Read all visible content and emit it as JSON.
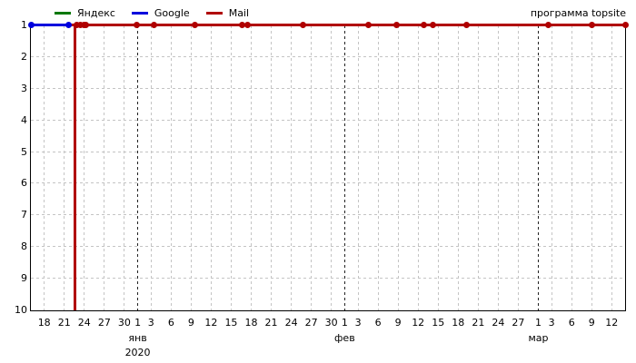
{
  "watermark": "программа topsite",
  "legend": [
    {
      "label": "Яндекс",
      "color": "#007800"
    },
    {
      "label": "Google",
      "color": "#0000dd"
    },
    {
      "label": "Mail",
      "color": "#b00000"
    }
  ],
  "chart_data": {
    "type": "line",
    "title": "",
    "watermark": "программа topsite",
    "grid": true,
    "y_axis": {
      "min": 1,
      "max": 10,
      "inverted": true,
      "tick_labels": [
        "1",
        "2",
        "3",
        "4",
        "5",
        "6",
        "7",
        "8",
        "9",
        "10"
      ]
    },
    "x_axis": {
      "domain_days": 89,
      "ticks": [
        {
          "label": "18",
          "day": 2
        },
        {
          "label": "21",
          "day": 5
        },
        {
          "label": "24",
          "day": 8
        },
        {
          "label": "27",
          "day": 11
        },
        {
          "label": "30",
          "day": 14
        },
        {
          "label": "1",
          "day": 16
        },
        {
          "label": "3",
          "day": 18
        },
        {
          "label": "6",
          "day": 21
        },
        {
          "label": "9",
          "day": 24
        },
        {
          "label": "12",
          "day": 27
        },
        {
          "label": "15",
          "day": 30
        },
        {
          "label": "18",
          "day": 33
        },
        {
          "label": "21",
          "day": 36
        },
        {
          "label": "24",
          "day": 39
        },
        {
          "label": "27",
          "day": 42
        },
        {
          "label": "30",
          "day": 45
        },
        {
          "label": "1",
          "day": 47
        },
        {
          "label": "3",
          "day": 49
        },
        {
          "label": "6",
          "day": 52
        },
        {
          "label": "9",
          "day": 55
        },
        {
          "label": "12",
          "day": 58
        },
        {
          "label": "15",
          "day": 61
        },
        {
          "label": "18",
          "day": 64
        },
        {
          "label": "21",
          "day": 67
        },
        {
          "label": "24",
          "day": 70
        },
        {
          "label": "27",
          "day": 73
        },
        {
          "label": "1",
          "day": 76
        },
        {
          "label": "3",
          "day": 78
        },
        {
          "label": "6",
          "day": 81
        },
        {
          "label": "9",
          "day": 84
        },
        {
          "label": "12",
          "day": 87
        }
      ],
      "month_markers": [
        {
          "label": "янв",
          "day": 16,
          "sublabel": "2020"
        },
        {
          "label": "фев",
          "day": 47,
          "sublabel": ""
        },
        {
          "label": "мар",
          "day": 76,
          "sublabel": ""
        }
      ]
    },
    "series": [
      {
        "name": "Яндекс",
        "color": "#007800",
        "segments": [],
        "marker_days": []
      },
      {
        "name": "Google",
        "color": "#0000dd",
        "segments": [
          {
            "from": 0,
            "to": 5.7,
            "pos": 1
          }
        ],
        "marker_days": [
          0,
          5.7
        ]
      },
      {
        "name": "Mail",
        "color": "#b00000",
        "vertical_day": 6.6,
        "segments": [
          {
            "from": 5.7,
            "to": 89,
            "pos": 1
          }
        ],
        "marker_days": [
          6.9,
          7.4,
          7.9,
          8.3,
          15.8,
          18.5,
          24.6,
          31.7,
          32.5,
          40.7,
          50.6,
          54.8,
          58.9,
          60.2,
          65.2,
          77.5,
          84,
          89
        ]
      }
    ]
  }
}
